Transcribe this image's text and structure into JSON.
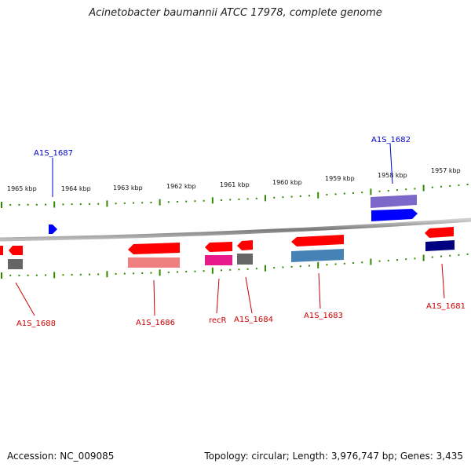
{
  "title": "Acinetobacter baumannii ATCC 17978, complete genome",
  "footer": {
    "accession": "Accession: NC_009085",
    "topology": "Topology: circular; Length: 3,976,747 bp; Genes: 3,435"
  },
  "colors": {
    "backbone": "#8a8a8a",
    "tick": "#2e8b00",
    "tick_label": "#111111",
    "label_plus": "#0000cc",
    "label_minus": "#cc0000"
  },
  "scale_labels": [
    "1965 kbp",
    "1964 kbp",
    "1963 kbp",
    "1962 kbp",
    "1961 kbp",
    "1960 kbp",
    "1959 kbp",
    "1958 kbp",
    "1957 kbp"
  ],
  "genes": [
    {
      "id": "g_a1s1688",
      "strand": "minus",
      "label": "A1S_1688",
      "product_color": "#666666"
    },
    {
      "id": "g_a1s1687",
      "strand": "plus",
      "label": "A1S_1687",
      "product_color": null
    },
    {
      "id": "g_a1s1686",
      "strand": "minus",
      "label": "A1S_1686",
      "product_color": "#f08080"
    },
    {
      "id": "g_recR",
      "strand": "minus",
      "label": "recR",
      "product_color": "#e8198a"
    },
    {
      "id": "g_a1s1684",
      "strand": "minus",
      "label": "A1S_1684",
      "product_color": "#666666"
    },
    {
      "id": "g_a1s1683",
      "strand": "minus",
      "label": "A1S_1683",
      "product_color": "#4682b4"
    },
    {
      "id": "g_a1s1682",
      "strand": "plus",
      "label": "A1S_1682",
      "product_color": "#7b68c8"
    },
    {
      "id": "g_a1s1681",
      "strand": "minus",
      "label": "A1S_1681",
      "product_color": "#000080"
    }
  ]
}
